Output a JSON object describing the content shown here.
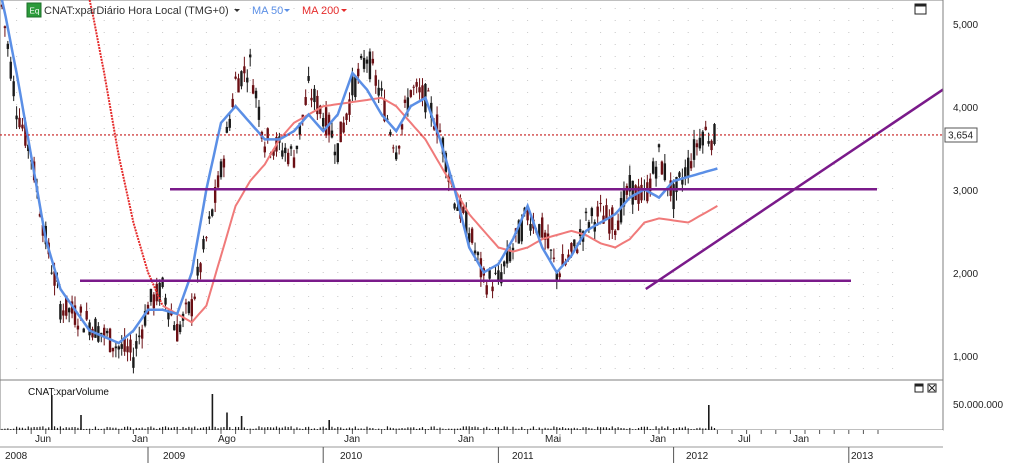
{
  "legend": {
    "badge": "Eq",
    "symbol": "CNAT:xparDiário Hora Local (TMG+0)",
    "ma50": "MA 50",
    "ma200": "MA 200"
  },
  "colors": {
    "price_up": "#6b0f14",
    "price_down": "#1a1a1a",
    "ma50": "#5b8fe6",
    "ma200_steep": "#e52b2b",
    "ma200": "#f07a7a",
    "trendline": "#7a1a8a",
    "last_price_line": "#c41a1a",
    "volume": "#1a1a1a"
  },
  "price_axis": {
    "ticks": [
      "1,000",
      "2,000",
      "3,000",
      "4,000",
      "5,000"
    ],
    "last_price": "3,654"
  },
  "volume_panel": {
    "title": "CNAT:xparVolume",
    "tick": "50.000.000"
  },
  "x_axis": {
    "months": [
      "Jun",
      "Jan",
      "Ago",
      "Jan",
      "Jan",
      "Mai",
      "Jan",
      "Jul",
      "Jan"
    ],
    "years": [
      "2008",
      "2009",
      "2010",
      "2011",
      "2012",
      "2013"
    ]
  },
  "chart_data": {
    "type": "candlestick",
    "ylim": [
      0.7,
      5.3
    ],
    "price_anchors": [
      [
        "2008-03",
        5.2
      ],
      [
        "2008-04",
        4.0
      ],
      [
        "2008-05",
        3.4
      ],
      [
        "2008-06",
        2.4
      ],
      [
        "2008-07",
        1.6
      ],
      [
        "2008-09",
        1.4
      ],
      [
        "2008-11",
        1.1
      ],
      [
        "2008-12",
        1.0
      ],
      [
        "2009-01",
        1.6
      ],
      [
        "2009-02",
        1.8
      ],
      [
        "2009-03",
        1.3
      ],
      [
        "2009-04",
        1.6
      ],
      [
        "2009-05",
        2.4
      ],
      [
        "2009-06",
        3.2
      ],
      [
        "2009-07",
        4.3
      ],
      [
        "2009-08",
        4.5
      ],
      [
        "2009-09",
        3.6
      ],
      [
        "2009-10",
        3.5
      ],
      [
        "2009-11",
        3.4
      ],
      [
        "2009-12",
        4.2
      ],
      [
        "2010-01",
        3.9
      ],
      [
        "2010-02",
        3.5
      ],
      [
        "2010-03",
        4.2
      ],
      [
        "2010-04",
        4.6
      ],
      [
        "2010-05",
        4.1
      ],
      [
        "2010-06",
        3.5
      ],
      [
        "2010-07",
        4.2
      ],
      [
        "2010-08",
        4.1
      ],
      [
        "2010-09",
        3.7
      ],
      [
        "2010-10",
        2.9
      ],
      [
        "2010-11",
        2.5
      ],
      [
        "2010-12",
        1.9
      ],
      [
        "2011-01",
        1.9
      ],
      [
        "2011-02",
        2.3
      ],
      [
        "2011-03",
        2.7
      ],
      [
        "2011-04",
        2.5
      ],
      [
        "2011-05",
        2.0
      ],
      [
        "2011-06",
        2.2
      ],
      [
        "2011-07",
        2.6
      ],
      [
        "2011-08",
        2.7
      ],
      [
        "2011-09",
        2.6
      ],
      [
        "2011-10",
        3.0
      ],
      [
        "2011-11",
        2.9
      ],
      [
        "2011-12",
        3.4
      ],
      [
        "2012-01",
        2.9
      ],
      [
        "2012-02",
        3.3
      ],
      [
        "2012-03",
        3.7
      ],
      [
        "2012-04",
        3.6
      ]
    ],
    "ma50_anchors": [
      [
        "2008-03",
        5.3
      ],
      [
        "2008-04",
        4.4
      ],
      [
        "2008-05",
        3.4
      ],
      [
        "2008-06",
        2.4
      ],
      [
        "2008-07",
        1.8
      ],
      [
        "2008-09",
        1.3
      ],
      [
        "2008-11",
        1.15
      ],
      [
        "2008-12",
        1.3
      ],
      [
        "2009-01",
        1.55
      ],
      [
        "2009-02",
        1.55
      ],
      [
        "2009-03",
        1.5
      ],
      [
        "2009-04",
        2.0
      ],
      [
        "2009-05",
        3.0
      ],
      [
        "2009-06",
        3.8
      ],
      [
        "2009-07",
        4.0
      ],
      [
        "2009-08",
        3.8
      ],
      [
        "2009-09",
        3.6
      ],
      [
        "2009-10",
        3.6
      ],
      [
        "2009-11",
        3.7
      ],
      [
        "2009-12",
        3.9
      ],
      [
        "2010-01",
        3.7
      ],
      [
        "2010-02",
        3.9
      ],
      [
        "2010-03",
        4.4
      ],
      [
        "2010-04",
        4.2
      ],
      [
        "2010-05",
        3.9
      ],
      [
        "2010-06",
        3.7
      ],
      [
        "2010-07",
        4.0
      ],
      [
        "2010-08",
        4.1
      ],
      [
        "2010-09",
        3.6
      ],
      [
        "2010-10",
        3.0
      ],
      [
        "2010-11",
        2.3
      ],
      [
        "2010-12",
        2.0
      ],
      [
        "2011-01",
        2.1
      ],
      [
        "2011-02",
        2.4
      ],
      [
        "2011-03",
        2.8
      ],
      [
        "2011-04",
        2.3
      ],
      [
        "2011-05",
        2.0
      ],
      [
        "2011-06",
        2.2
      ],
      [
        "2011-07",
        2.5
      ],
      [
        "2011-08",
        2.6
      ],
      [
        "2011-09",
        2.7
      ],
      [
        "2011-10",
        2.9
      ],
      [
        "2011-11",
        3.0
      ],
      [
        "2011-12",
        2.9
      ],
      [
        "2012-01",
        3.1
      ],
      [
        "2012-04",
        3.25
      ]
    ],
    "ma200_anchors": [
      [
        "2008-09",
        5.3
      ],
      [
        "2008-10",
        4.4
      ],
      [
        "2008-11",
        3.4
      ],
      [
        "2008-12",
        2.6
      ],
      [
        "2009-01",
        2.0
      ],
      [
        "2009-02",
        1.6
      ],
      [
        "2009-03",
        1.5
      ],
      [
        "2009-04",
        1.4
      ],
      [
        "2009-05",
        1.6
      ],
      [
        "2009-06",
        2.2
      ],
      [
        "2009-07",
        2.8
      ],
      [
        "2009-08",
        3.1
      ],
      [
        "2009-09",
        3.3
      ],
      [
        "2009-10",
        3.6
      ],
      [
        "2009-11",
        3.8
      ],
      [
        "2009-12",
        3.9
      ],
      [
        "2010-01",
        4.0
      ],
      [
        "2010-03",
        4.05
      ],
      [
        "2010-05",
        4.1
      ],
      [
        "2010-06",
        4.0
      ],
      [
        "2010-07",
        3.8
      ],
      [
        "2010-08",
        3.6
      ],
      [
        "2010-09",
        3.3
      ],
      [
        "2010-10",
        3.0
      ],
      [
        "2010-11",
        2.7
      ],
      [
        "2010-12",
        2.5
      ],
      [
        "2011-01",
        2.3
      ],
      [
        "2011-02",
        2.25
      ],
      [
        "2011-03",
        2.3
      ],
      [
        "2011-04",
        2.4
      ],
      [
        "2011-05",
        2.45
      ],
      [
        "2011-06",
        2.5
      ],
      [
        "2011-07",
        2.45
      ],
      [
        "2011-08",
        2.35
      ],
      [
        "2011-09",
        2.3
      ],
      [
        "2011-10",
        2.4
      ],
      [
        "2011-11",
        2.6
      ],
      [
        "2011-12",
        2.65
      ],
      [
        "2012-02",
        2.6
      ],
      [
        "2012-03",
        2.7
      ],
      [
        "2012-04",
        2.8
      ]
    ],
    "horizontal_lines": [
      3.0,
      1.9
    ],
    "trendline": [
      [
        "2011-10",
        1.8
      ],
      [
        "2013-03",
        4.2
      ]
    ],
    "last_price": 3.654,
    "volume_max": 80000000,
    "volume_spikes": [
      [
        "2008-06",
        70000000
      ],
      [
        "2008-08",
        30000000
      ],
      [
        "2009-05",
        72000000
      ],
      [
        "2009-06",
        35000000
      ],
      [
        "2009-07",
        28000000
      ],
      [
        "2010-01",
        20000000
      ],
      [
        "2012-03",
        50000000
      ]
    ]
  }
}
